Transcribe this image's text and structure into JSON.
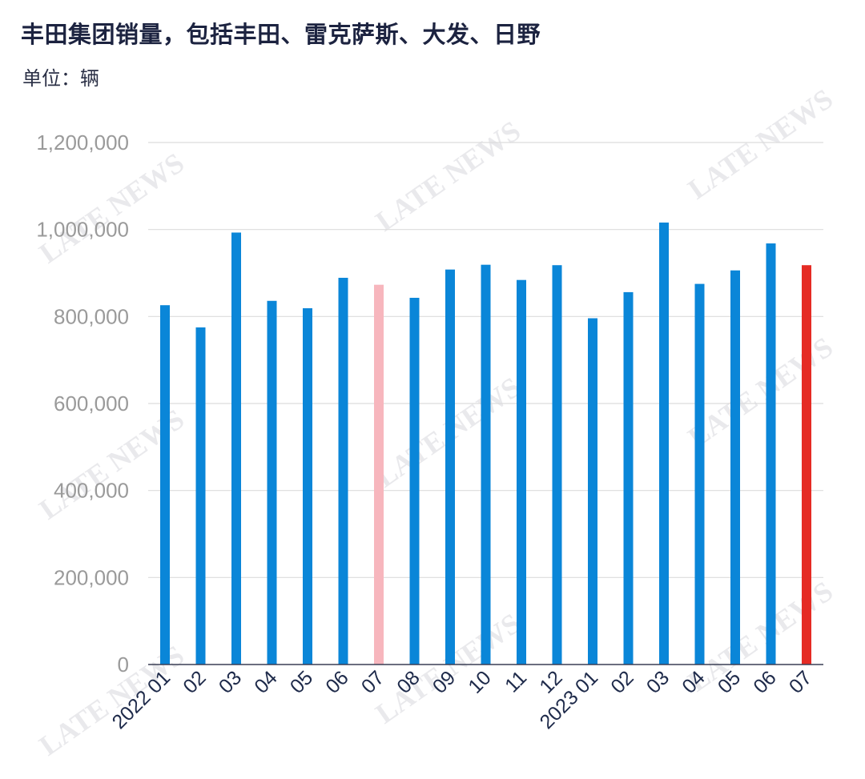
{
  "chart_data": {
    "type": "bar",
    "title": "丰田集团销量，包括丰田、雷克萨斯、大发、日野",
    "subtitle": "单位：辆",
    "categories": [
      "2022 01",
      "02",
      "03",
      "04",
      "05",
      "06",
      "07",
      "08",
      "09",
      "10",
      "11",
      "12",
      "2023 01",
      "02",
      "03",
      "04",
      "05",
      "06",
      "07"
    ],
    "values": [
      826000,
      775000,
      993000,
      836000,
      819000,
      889000,
      873000,
      843000,
      908000,
      919000,
      884000,
      918000,
      796000,
      856000,
      1016000,
      875000,
      906000,
      968000,
      918000
    ],
    "bar_colors": [
      "#0a86d8",
      "#0a86d8",
      "#0a86d8",
      "#0a86d8",
      "#0a86d8",
      "#0a86d8",
      "#f7b6bd",
      "#0a86d8",
      "#0a86d8",
      "#0a86d8",
      "#0a86d8",
      "#0a86d8",
      "#0a86d8",
      "#0a86d8",
      "#0a86d8",
      "#0a86d8",
      "#0a86d8",
      "#0a86d8",
      "#e52b24"
    ],
    "ylim": [
      0,
      1200000
    ],
    "yticks": [
      0,
      200000,
      400000,
      600000,
      800000,
      1000000,
      1200000
    ],
    "ytick_labels": [
      "0",
      "200,000",
      "400,000",
      "600,000",
      "800,000",
      "1,000,000",
      "1,200,000"
    ],
    "grid": true,
    "legend": "none"
  },
  "watermark": "LATE NEWS"
}
